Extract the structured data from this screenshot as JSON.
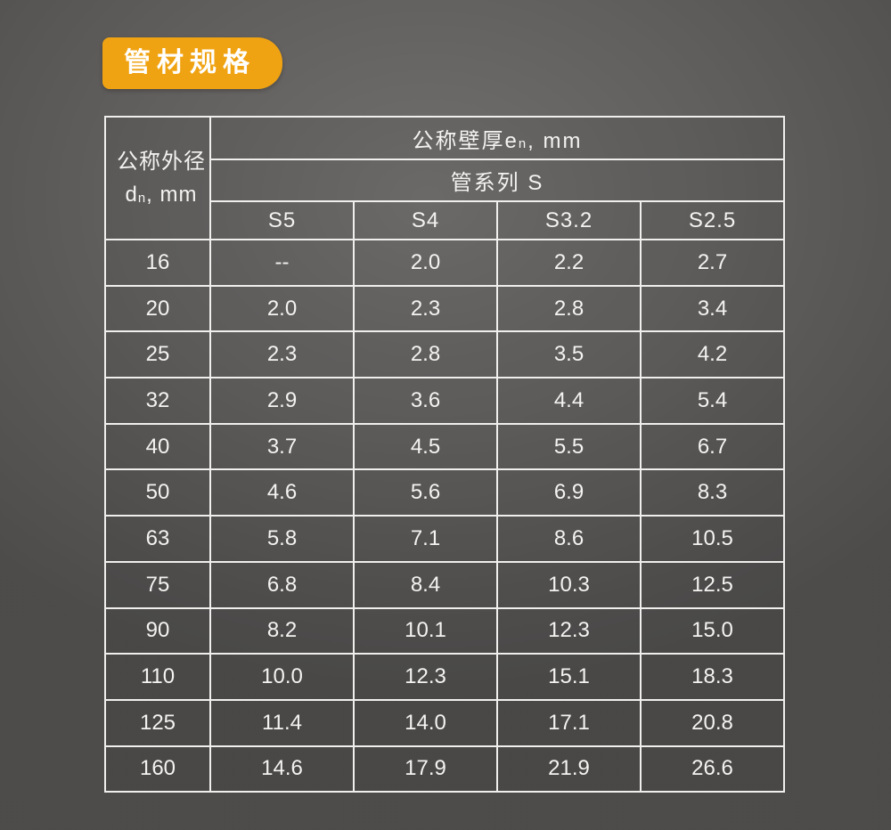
{
  "badge": {
    "label": "管材规格"
  },
  "table": {
    "corner": {
      "line1": "公称外径",
      "line2_pre": "d",
      "line2_sub": "n",
      "line2_post": ", mm"
    },
    "thickness_header": {
      "pre": "公称壁厚e",
      "sub": "n",
      "post": ", mm"
    },
    "series_header": "管系列 S",
    "columns": [
      "S5",
      "S4",
      "S3.2",
      "S2.5"
    ],
    "rows": [
      {
        "dn": "16",
        "values": [
          "--",
          "2.0",
          "2.2",
          "2.7"
        ]
      },
      {
        "dn": "20",
        "values": [
          "2.0",
          "2.3",
          "2.8",
          "3.4"
        ]
      },
      {
        "dn": "25",
        "values": [
          "2.3",
          "2.8",
          "3.5",
          "4.2"
        ]
      },
      {
        "dn": "32",
        "values": [
          "2.9",
          "3.6",
          "4.4",
          "5.4"
        ]
      },
      {
        "dn": "40",
        "values": [
          "3.7",
          "4.5",
          "5.5",
          "6.7"
        ]
      },
      {
        "dn": "50",
        "values": [
          "4.6",
          "5.6",
          "6.9",
          "8.3"
        ]
      },
      {
        "dn": "63",
        "values": [
          "5.8",
          "7.1",
          "8.6",
          "10.5"
        ]
      },
      {
        "dn": "75",
        "values": [
          "6.8",
          "8.4",
          "10.3",
          "12.5"
        ]
      },
      {
        "dn": "90",
        "values": [
          "8.2",
          "10.1",
          "12.3",
          "15.0"
        ]
      },
      {
        "dn": "110",
        "values": [
          "10.0",
          "12.3",
          "15.1",
          "18.3"
        ]
      },
      {
        "dn": "125",
        "values": [
          "11.4",
          "14.0",
          "17.1",
          "20.8"
        ]
      },
      {
        "dn": "160",
        "values": [
          "14.6",
          "17.9",
          "21.9",
          "26.6"
        ]
      }
    ]
  },
  "colors": {
    "badge_bg": "#F0A312",
    "badge_text": "#FFFFFF",
    "table_border": "#F0EFED",
    "table_text": "#F5F3F1",
    "background_center": "#6F6D6B",
    "background_edge": "#4B4947"
  }
}
